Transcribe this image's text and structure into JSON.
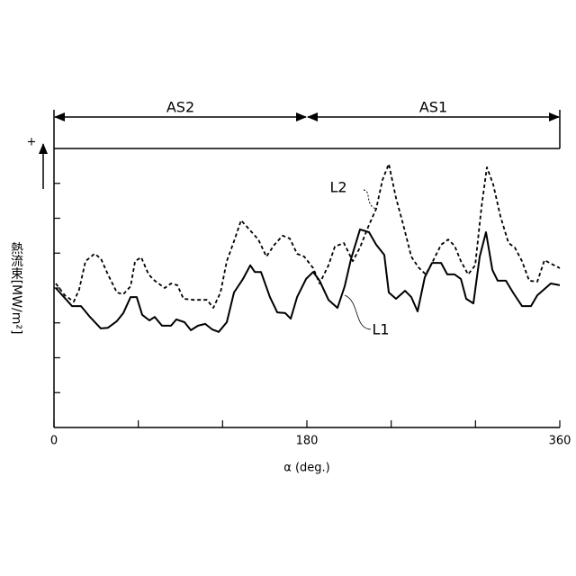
{
  "chart_data": {
    "type": "line",
    "y_label": "熱流束[MW/m²]",
    "y_direction": "+",
    "x_label": "α (deg.)",
    "xlim": [
      0,
      360
    ],
    "xticks": [
      0,
      180,
      360
    ],
    "xminor_ticks": [
      60,
      120,
      240,
      300
    ],
    "ylim": [
      0,
      8
    ],
    "yticks": [
      1,
      2,
      3,
      4,
      5,
      6,
      7
    ],
    "regions": [
      {
        "label": "AS2",
        "range": [
          0,
          180
        ]
      },
      {
        "label": "AS1",
        "range": [
          180,
          360
        ]
      }
    ],
    "series": [
      {
        "name": "L1",
        "color": "#000000",
        "dash": "solid",
        "x": [
          1.3,
          12.8,
          19.2,
          25.6,
          33.3,
          38.4,
          44.8,
          49.3,
          54.5,
          58.9,
          62.8,
          67.9,
          71.7,
          76.9,
          83.3,
          87.1,
          92.9,
          97.4,
          102.5,
          107.6,
          112.7,
          117.2,
          123.0,
          128.1,
          134.5,
          139.7,
          142.9,
          147.3,
          153.7,
          158.9,
          164.6,
          168.5,
          173.0,
          179.4,
          184.5,
          189.0,
          195.4,
          201.8,
          206.9,
          211.4,
          217.8,
          224.2,
          229.3,
          235.1,
          238.3,
          243.4,
          249.8,
          254.3,
          258.8,
          263.9,
          269.1,
          275.5,
          279.9,
          285.1,
          289.6,
          293.4,
          298.5,
          303.0,
          307.5,
          312.0,
          315.8,
          321.6,
          326.7,
          333.1,
          339.5,
          344.0,
          353.6,
          360
        ],
        "values": [
          4.0,
          3.48,
          3.48,
          3.17,
          2.84,
          2.86,
          3.05,
          3.28,
          3.74,
          3.74,
          3.23,
          3.07,
          3.17,
          2.92,
          2.92,
          3.1,
          3.02,
          2.79,
          2.92,
          2.97,
          2.81,
          2.74,
          3.02,
          3.87,
          4.26,
          4.65,
          4.46,
          4.46,
          3.74,
          3.3,
          3.28,
          3.12,
          3.74,
          4.26,
          4.46,
          4.21,
          3.66,
          3.43,
          4.05,
          4.83,
          5.68,
          5.6,
          5.24,
          4.95,
          3.87,
          3.69,
          3.92,
          3.74,
          3.33,
          4.31,
          4.72,
          4.72,
          4.39,
          4.39,
          4.26,
          3.69,
          3.56,
          4.9,
          5.6,
          4.52,
          4.21,
          4.21,
          3.87,
          3.48,
          3.48,
          3.79,
          4.13,
          4.08
        ]
      },
      {
        "name": "L2",
        "color": "#000000",
        "dash": "dashed",
        "x": [
          1.3,
          7.7,
          14.1,
          17.9,
          22.4,
          28.8,
          33.3,
          38.4,
          44.8,
          49.3,
          54.5,
          57.7,
          62.1,
          67.3,
          71.7,
          78.8,
          83.3,
          87.8,
          92.2,
          99.3,
          108.9,
          113.4,
          118.5,
          123.0,
          128.1,
          133.2,
          139.0,
          145.4,
          151.2,
          156.9,
          162.7,
          167.8,
          173.0,
          178.1,
          184.5,
          189.0,
          195.4,
          199.9,
          206.3,
          212.7,
          217.8,
          224.2,
          229.3,
          233.8,
          238.3,
          243.4,
          248.6,
          254.3,
          259.4,
          264.6,
          269.7,
          275.5,
          280.6,
          285.1,
          289.6,
          294.7,
          299.8,
          304.3,
          308.1,
          312.6,
          317.7,
          323.5,
          328.0,
          333.1,
          338.2,
          344.0,
          349.1,
          353.6,
          360
        ],
        "values": [
          4.13,
          3.79,
          3.61,
          3.95,
          4.77,
          4.98,
          4.85,
          4.39,
          3.87,
          3.82,
          4.05,
          4.77,
          4.88,
          4.39,
          4.21,
          4.0,
          4.13,
          4.08,
          3.69,
          3.66,
          3.66,
          3.43,
          3.87,
          4.77,
          5.34,
          5.94,
          5.68,
          5.39,
          4.9,
          5.24,
          5.5,
          5.42,
          4.98,
          4.9,
          4.57,
          4.13,
          4.65,
          5.19,
          5.29,
          4.77,
          5.16,
          5.81,
          6.27,
          7.1,
          7.56,
          6.58,
          5.81,
          4.9,
          4.59,
          4.39,
          4.77,
          5.24,
          5.39,
          5.21,
          4.77,
          4.39,
          4.65,
          6.32,
          7.46,
          6.97,
          6.06,
          5.29,
          5.16,
          4.77,
          4.21,
          4.18,
          4.8,
          4.7,
          4.57
        ]
      }
    ]
  }
}
